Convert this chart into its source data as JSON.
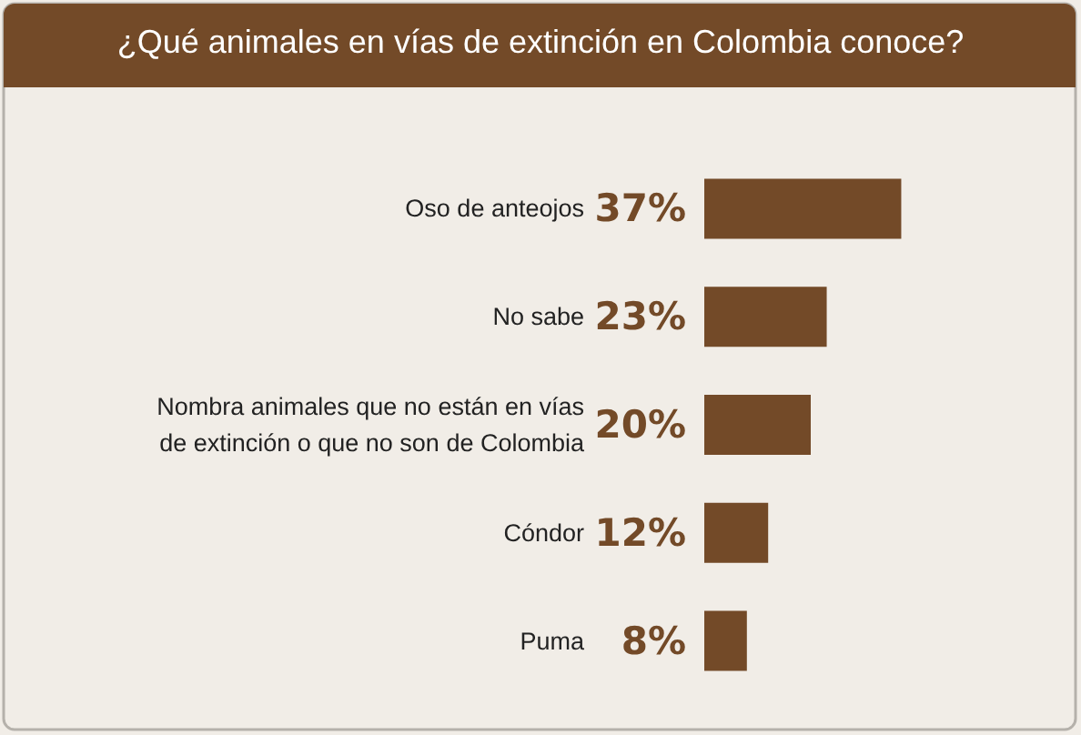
{
  "chart_data": {
    "type": "bar",
    "orientation": "horizontal",
    "title": "¿Qué animales en vías de extinción en Colombia conoce?",
    "categories": [
      "Oso de anteojos",
      "No sabe",
      "Nombra animales que no están en vías\nde extinción o que no son de Colombia",
      "Cóndor",
      "Puma"
    ],
    "values": [
      37,
      23,
      20,
      12,
      8
    ],
    "value_labels": [
      "37%",
      "23%",
      "20%",
      "12%",
      "8%"
    ],
    "color": "#734a28"
  }
}
